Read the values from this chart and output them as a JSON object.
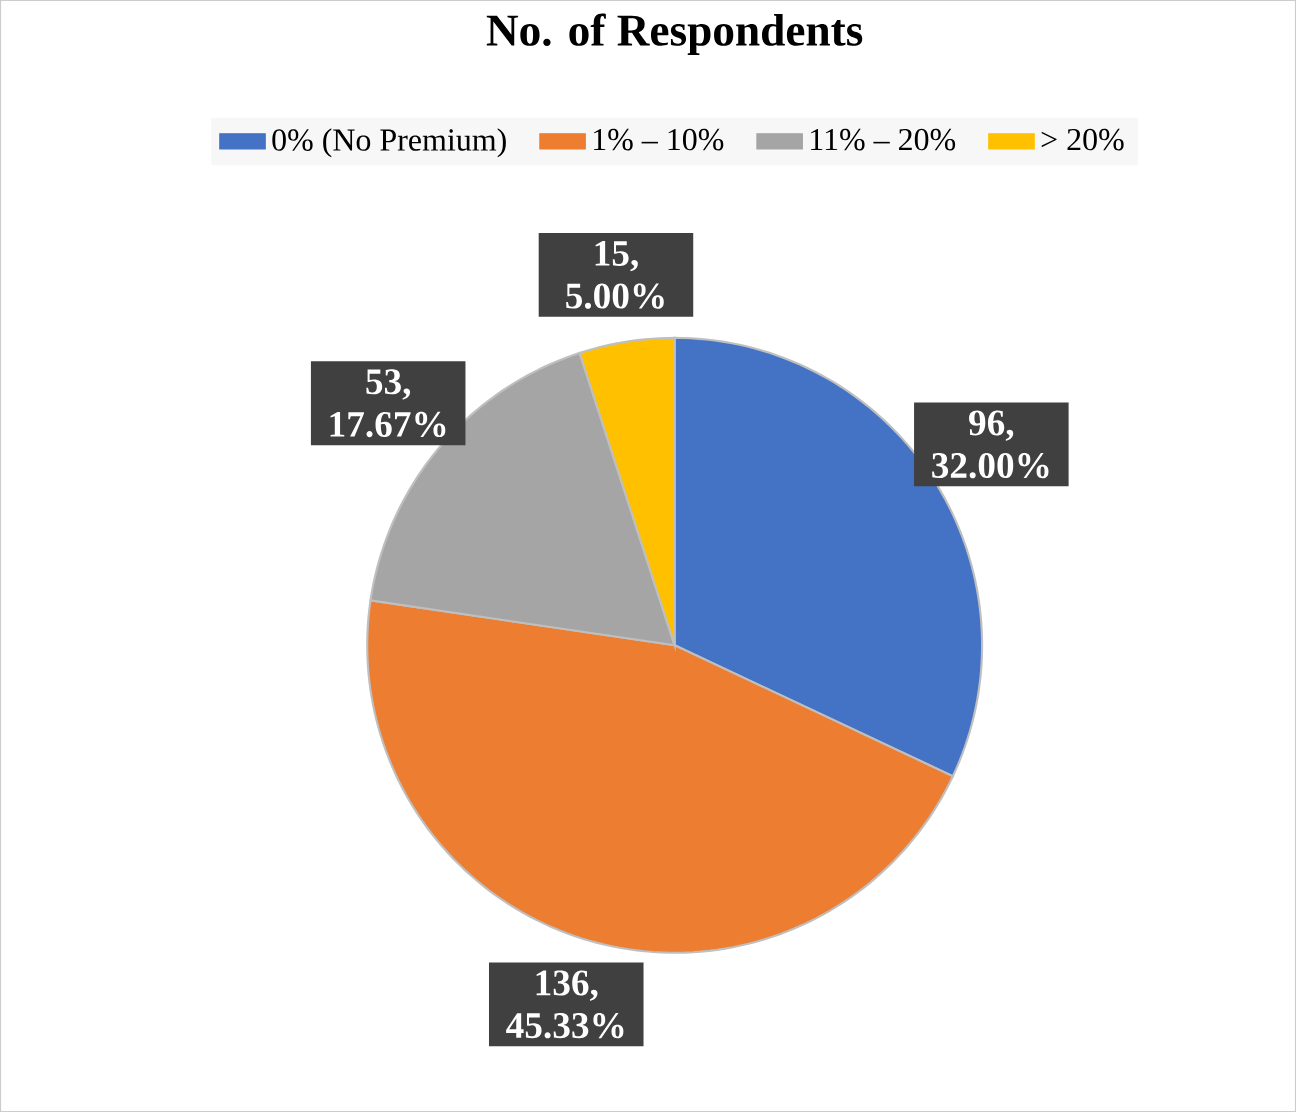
{
  "chart_data": {
    "type": "pie",
    "title": "No. of Respondents",
    "categories": [
      "0% (No Premium)",
      "1% – 10%",
      "11% – 20%",
      "> 20%"
    ],
    "values": [
      96,
      136,
      53,
      15
    ],
    "colors": [
      "#4472c4",
      "#ed7d31",
      "#a5a5a5",
      "#ffc000"
    ],
    "value_labels": [
      "96, 32.00%",
      "136, 45.33%",
      "53, 17.67%",
      "15, 5.00%"
    ],
    "legend": "top"
  }
}
